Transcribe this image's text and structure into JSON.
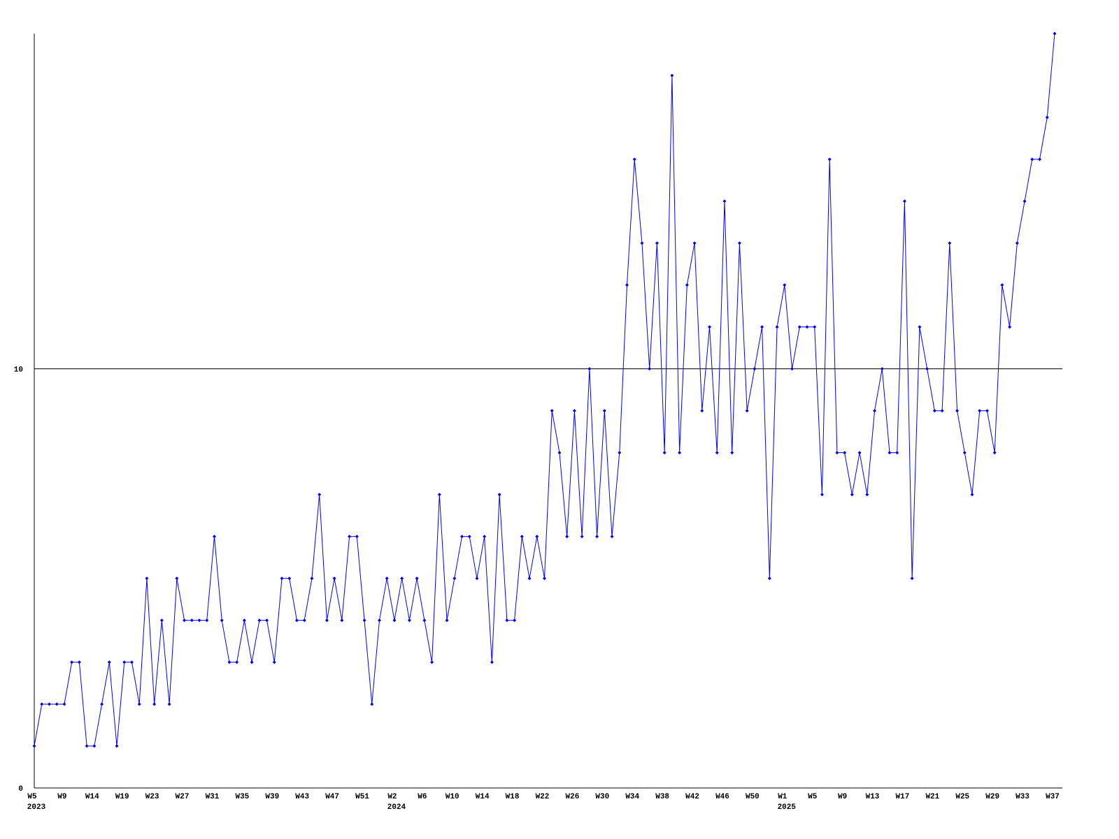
{
  "chart_data": {
    "type": "line",
    "categories": [
      "W5",
      null,
      null,
      null,
      "W9",
      null,
      null,
      null,
      "W14",
      null,
      null,
      null,
      "W19",
      null,
      null,
      null,
      "W23",
      null,
      null,
      null,
      "W27",
      null,
      null,
      null,
      "W31",
      null,
      null,
      null,
      "W35",
      null,
      null,
      null,
      "W39",
      null,
      null,
      null,
      "W43",
      null,
      null,
      null,
      "W47",
      null,
      null,
      null,
      "W51",
      null,
      null,
      null,
      "W2",
      null,
      null,
      null,
      "W6",
      null,
      null,
      null,
      "W10",
      null,
      null,
      null,
      "W14",
      null,
      null,
      null,
      "W18",
      null,
      null,
      null,
      "W22",
      null,
      null,
      null,
      "W26",
      null,
      null,
      null,
      "W30",
      null,
      null,
      null,
      "W34",
      null,
      null,
      null,
      "W38",
      null,
      null,
      null,
      "W42",
      null,
      null,
      null,
      "W46",
      null,
      null,
      null,
      "W50",
      null,
      null,
      null,
      "W1",
      null,
      null,
      null,
      "W5",
      null,
      null,
      null,
      "W9",
      null,
      null,
      null,
      "W13",
      null,
      null,
      null,
      "W17",
      null,
      null,
      null,
      "W21",
      null,
      null,
      null,
      "W25",
      null,
      null,
      null,
      "W29",
      null,
      null,
      null,
      "W33",
      null,
      null,
      null,
      "W37"
    ],
    "category_years": [
      "2023",
      null,
      null,
      null,
      null,
      null,
      null,
      null,
      null,
      null,
      null,
      null,
      null,
      null,
      null,
      null,
      null,
      null,
      null,
      null,
      null,
      null,
      null,
      null,
      null,
      null,
      null,
      null,
      null,
      null,
      null,
      null,
      null,
      null,
      null,
      null,
      null,
      null,
      null,
      null,
      null,
      null,
      null,
      null,
      null,
      null,
      null,
      null,
      "2024",
      null,
      null,
      null,
      null,
      null,
      null,
      null,
      null,
      null,
      null,
      null,
      null,
      null,
      null,
      null,
      null,
      null,
      null,
      null,
      null,
      null,
      null,
      null,
      null,
      null,
      null,
      null,
      null,
      null,
      null,
      null,
      null,
      null,
      null,
      null,
      null,
      null,
      null,
      null,
      null,
      null,
      null,
      null,
      null,
      null,
      null,
      null,
      null,
      null,
      null,
      null,
      "2025",
      null,
      null,
      null,
      null,
      null,
      null,
      null,
      null,
      null,
      null,
      null,
      null,
      null,
      null,
      null,
      null,
      null,
      null,
      null,
      null,
      null,
      null,
      null,
      null,
      null,
      null,
      null,
      null,
      null,
      null,
      null,
      null,
      null,
      null,
      null,
      null
    ],
    "series": [
      {
        "color": "#0000ff",
        "values": [
          1,
          2,
          2,
          2,
          2,
          3,
          3,
          1,
          1,
          2,
          3,
          1,
          3,
          3,
          2,
          5,
          2,
          4,
          2,
          5,
          4,
          4,
          4,
          4,
          6,
          4,
          3,
          3,
          4,
          3,
          4,
          4,
          3,
          5,
          5,
          4,
          4,
          5,
          7,
          4,
          5,
          4,
          6,
          6,
          4,
          2,
          4,
          5,
          4,
          5,
          4,
          5,
          4,
          3,
          7,
          4,
          5,
          6,
          6,
          5,
          6,
          3,
          7,
          4,
          4,
          6,
          5,
          6,
          5,
          9,
          8,
          6,
          9,
          6,
          10,
          6,
          9,
          6,
          8,
          12,
          15,
          13,
          10,
          13,
          8,
          17,
          8,
          12,
          13,
          9,
          11,
          8,
          14,
          8,
          13,
          9,
          10,
          11,
          5,
          11,
          12,
          10,
          11,
          11,
          11,
          7,
          15,
          8,
          8,
          7,
          8,
          7,
          9,
          10,
          8,
          8,
          14,
          5,
          11,
          10,
          9,
          9,
          13,
          9,
          8,
          7,
          9,
          9,
          8,
          12,
          11,
          13,
          14,
          15,
          15,
          16,
          18
        ]
      }
    ],
    "ylim": [
      0,
      18
    ],
    "yticks": [
      0,
      10
    ],
    "grid": true
  }
}
